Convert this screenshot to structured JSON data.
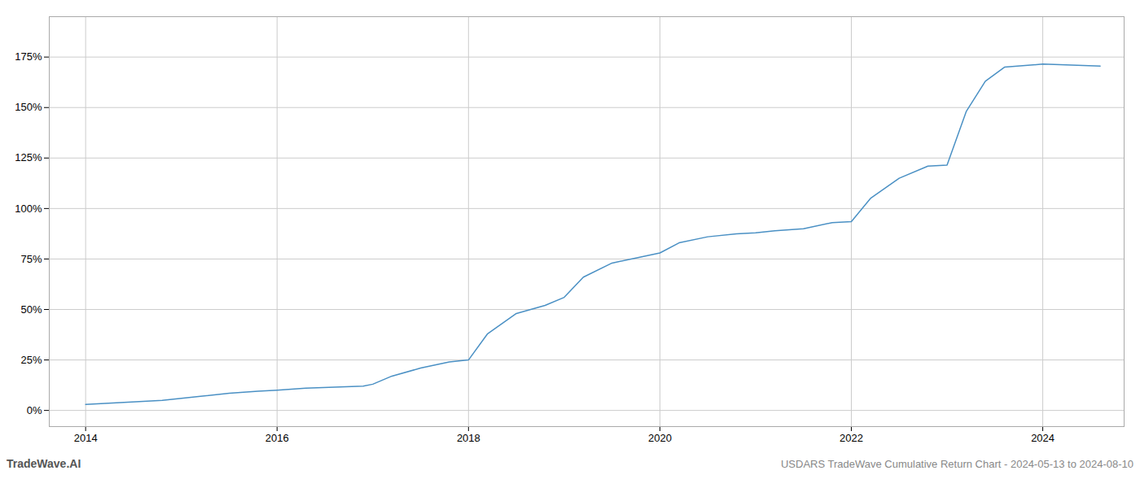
{
  "chart_data": {
    "type": "line",
    "title": "USDARS TradeWave Cumulative Return Chart - 2024-05-13 to 2024-08-10",
    "annotations": [
      "TradeWave.AI"
    ],
    "color": "#4a90c4",
    "x": [
      2014.0,
      2014.2,
      2014.4,
      2014.6,
      2014.8,
      2015.0,
      2015.2,
      2015.5,
      2015.8,
      2016.0,
      2016.3,
      2016.6,
      2016.9,
      2017.0,
      2017.2,
      2017.5,
      2017.8,
      2018.0,
      2018.2,
      2018.5,
      2018.8,
      2019.0,
      2019.2,
      2019.5,
      2019.8,
      2020.0,
      2020.2,
      2020.5,
      2020.8,
      2021.0,
      2021.2,
      2021.5,
      2021.8,
      2022.0,
      2022.2,
      2022.5,
      2022.8,
      2023.0,
      2023.2,
      2023.4,
      2023.6,
      2024.0,
      2024.3,
      2024.6
    ],
    "values": [
      3.0,
      3.5,
      4.0,
      4.5,
      5.0,
      6.0,
      7.0,
      8.5,
      9.5,
      10.0,
      11.0,
      11.5,
      12.0,
      13.0,
      17.0,
      21.0,
      24.0,
      25.0,
      38.0,
      48.0,
      52.0,
      56.0,
      66.0,
      73.0,
      76.0,
      78.0,
      83.0,
      86.0,
      87.5,
      88.0,
      89.0,
      90.0,
      93.0,
      93.5,
      105.0,
      115.0,
      121.0,
      121.5,
      148.0,
      163.0,
      170.0,
      171.5,
      171.0,
      170.5
    ],
    "xlim": [
      2013.62,
      2024.85
    ],
    "xticks": [
      2014,
      2016,
      2018,
      2020,
      2022,
      2024
    ],
    "ylim": [
      -8,
      195
    ],
    "yticks": [
      {
        "value": 0,
        "label": "0%"
      },
      {
        "value": 25,
        "label": "25%"
      },
      {
        "value": 50,
        "label": "50%"
      },
      {
        "value": 75,
        "label": "75%"
      },
      {
        "value": 100,
        "label": "100%"
      },
      {
        "value": 125,
        "label": "125%"
      },
      {
        "value": 150,
        "label": "150%"
      },
      {
        "value": 175,
        "label": "175%"
      }
    ],
    "grid": true
  }
}
